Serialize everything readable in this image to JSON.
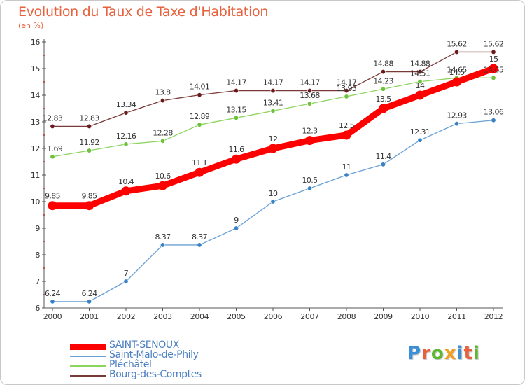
{
  "header": {
    "title": "Evolution du Taux de Taxe d'Habitation",
    "unit": "(en %)"
  },
  "logo": {
    "text": "Proxiti",
    "colors": [
      "#3a8fd6",
      "#e8603c",
      "#5cb82e",
      "#f0a020",
      "#3a8fd6",
      "#e8603c",
      "#5cb82e"
    ]
  },
  "chart_data": {
    "type": "line",
    "title": "Evolution du Taux de Taxe d'Habitation",
    "ylabel": "(en %)",
    "xlabel": "",
    "x": [
      "2000",
      "2001",
      "2002",
      "2003",
      "2004",
      "2005",
      "2006",
      "2007",
      "2008",
      "2009",
      "2010",
      "2011",
      "2012"
    ],
    "ylim": [
      6,
      16
    ],
    "yticks": [
      "6",
      "7",
      "8",
      "9",
      "10",
      "11",
      "12",
      "13",
      "14",
      "15",
      "16"
    ],
    "grid": false,
    "legend_position": "bottom-left",
    "series": [
      {
        "name": "SAINT-SENOUX",
        "color": "#ff0000",
        "highlight": true,
        "values": [
          9.85,
          9.85,
          10.4,
          10.6,
          11.1,
          11.6,
          12,
          12.3,
          12.5,
          13.5,
          14,
          14.5,
          15
        ],
        "labels": [
          "9.85",
          "9.85",
          "10.4",
          "10.6",
          "11.1",
          "11.6",
          "12",
          "12.3",
          "12.5",
          "13.5",
          "14",
          "14.5",
          "15"
        ]
      },
      {
        "name": "Saint-Malo-de-Phily",
        "color": "#6aa0d4",
        "marker_color": "#3a80c4",
        "values": [
          6.24,
          6.24,
          7,
          8.37,
          8.37,
          9,
          10,
          10.5,
          11,
          11.4,
          12.31,
          12.93,
          13.06
        ],
        "labels": [
          "6.24",
          "6.24",
          "7",
          "8.37",
          "8.37",
          "9",
          "10",
          "10.5",
          "11",
          "11.4",
          "12.31",
          "12.93",
          "13.06"
        ]
      },
      {
        "name": "Pléchâtel",
        "color": "#8ed460",
        "marker_color": "#6cc23a",
        "values": [
          11.69,
          11.92,
          12.16,
          12.28,
          12.89,
          13.15,
          13.41,
          13.68,
          13.95,
          14.23,
          14.51,
          14.65,
          14.65
        ],
        "labels": [
          "11.69",
          "11.92",
          "12.16",
          "12.28",
          "12.89",
          "13.15",
          "13.41",
          "13.68",
          "13.95",
          "14.23",
          "14.51",
          "14.65",
          "14.65"
        ]
      },
      {
        "name": "Bourg-des-Comptes",
        "color": "#7a3a3a",
        "marker_color": "#6a1a1a",
        "values": [
          12.83,
          12.83,
          13.34,
          13.8,
          14.01,
          14.17,
          14.17,
          14.17,
          14.17,
          14.88,
          14.88,
          15.62,
          15.62
        ],
        "labels": [
          "12.83",
          "12.83",
          "13.34",
          "13.8",
          "14.01",
          "14.17",
          "14.17",
          "14.17",
          "14.17",
          "14.88",
          "14.88",
          "15.62",
          "15.62"
        ]
      }
    ]
  }
}
